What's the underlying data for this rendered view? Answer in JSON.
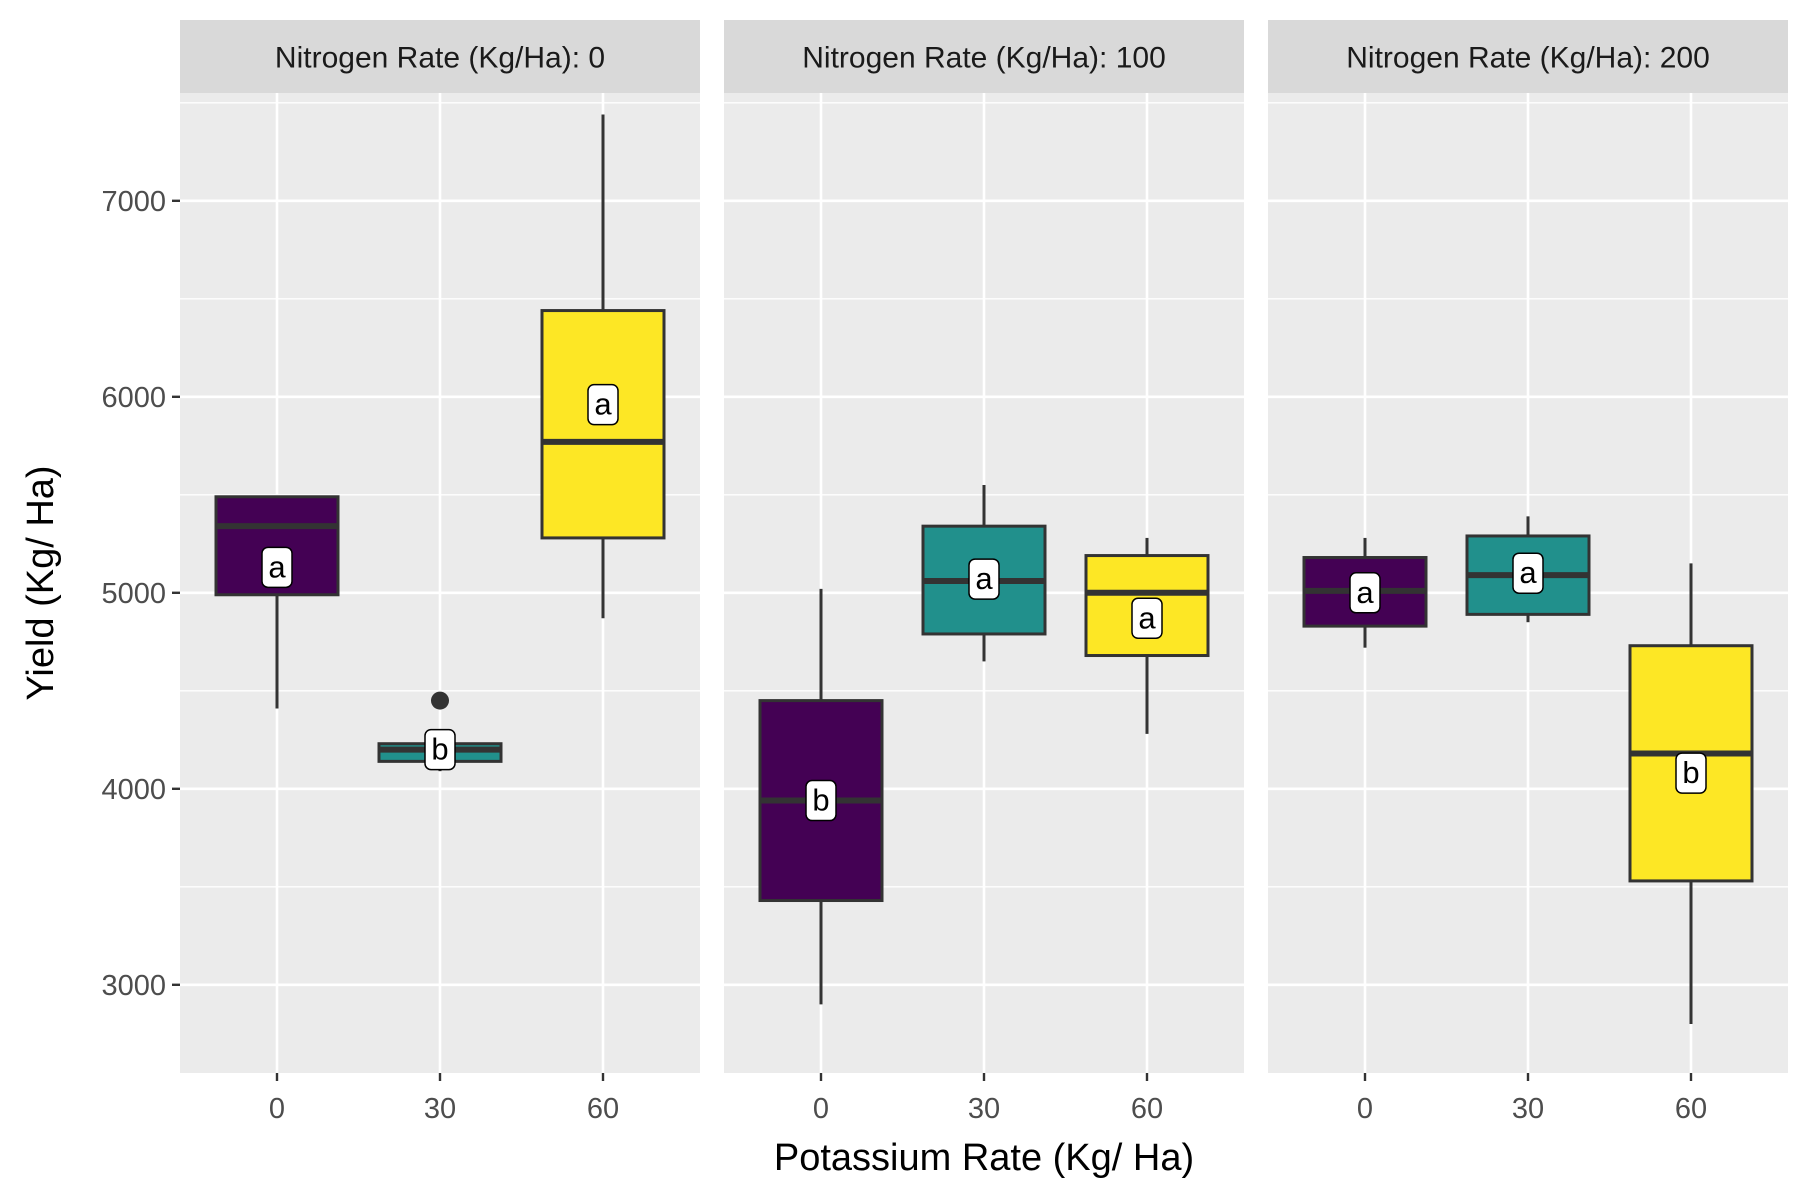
{
  "chart_data": {
    "type": "boxplot",
    "xlabel": "Potassium Rate (Kg/ Ha)",
    "ylabel": "Yield (Kg/ Ha)",
    "ylim": [
      2550,
      7550
    ],
    "y_ticks": [
      3000,
      4000,
      5000,
      6000,
      7000
    ],
    "categories": [
      "0",
      "30",
      "60"
    ],
    "colors": {
      "0": "#440154",
      "30": "#21908C",
      "60": "#FDE725"
    },
    "grid": true,
    "legend": "none",
    "facets": [
      {
        "label": "Nitrogen Rate (Kg/Ha): 0",
        "boxes": [
          {
            "x": "0",
            "lower_whisker": 4410,
            "q1": 4990,
            "median": 5340,
            "q3": 5490,
            "upper_whisker": 5490,
            "outliers": [],
            "letter": "a",
            "letter_y": 5130
          },
          {
            "x": "30",
            "lower_whisker": 4090,
            "q1": 4140,
            "median": 4200,
            "q3": 4230,
            "upper_whisker": 4230,
            "outliers": [
              4450
            ],
            "letter": "b",
            "letter_y": 4200
          },
          {
            "x": "60",
            "lower_whisker": 4870,
            "q1": 5280,
            "median": 5770,
            "q3": 6440,
            "upper_whisker": 7440,
            "outliers": [],
            "letter": "a",
            "letter_y": 5960
          }
        ]
      },
      {
        "label": "Nitrogen Rate (Kg/Ha): 100",
        "boxes": [
          {
            "x": "0",
            "lower_whisker": 2900,
            "q1": 3430,
            "median": 3940,
            "q3": 4450,
            "upper_whisker": 5020,
            "outliers": [],
            "letter": "b",
            "letter_y": 3940
          },
          {
            "x": "30",
            "lower_whisker": 4650,
            "q1": 4790,
            "median": 5060,
            "q3": 5340,
            "upper_whisker": 5550,
            "outliers": [],
            "letter": "a",
            "letter_y": 5070
          },
          {
            "x": "60",
            "lower_whisker": 4280,
            "q1": 4680,
            "median": 5000,
            "q3": 5190,
            "upper_whisker": 5280,
            "outliers": [],
            "letter": "a",
            "letter_y": 4870
          }
        ]
      },
      {
        "label": "Nitrogen Rate (Kg/Ha): 200",
        "boxes": [
          {
            "x": "0",
            "lower_whisker": 4720,
            "q1": 4830,
            "median": 5010,
            "q3": 5180,
            "upper_whisker": 5280,
            "outliers": [],
            "letter": "a",
            "letter_y": 5000
          },
          {
            "x": "30",
            "lower_whisker": 4850,
            "q1": 4890,
            "median": 5090,
            "q3": 5290,
            "upper_whisker": 5390,
            "outliers": [],
            "letter": "a",
            "letter_y": 5100
          },
          {
            "x": "60",
            "lower_whisker": 2800,
            "q1": 3530,
            "median": 4180,
            "q3": 4730,
            "upper_whisker": 5150,
            "outliers": [],
            "letter": "b",
            "letter_y": 4080
          }
        ]
      }
    ]
  }
}
